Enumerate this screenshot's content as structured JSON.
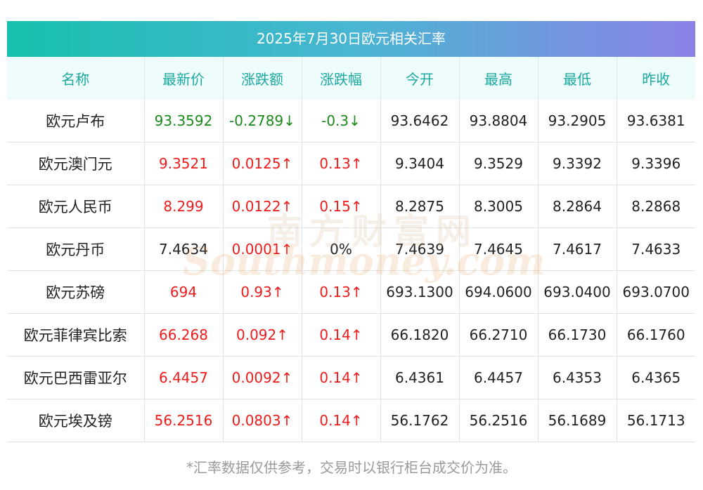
{
  "title": "2025年7月30日欧元相关汇率",
  "columns": [
    "名称",
    "最新价",
    "涨跌额",
    "涨跌幅",
    "今开",
    "最高",
    "最低",
    "昨收"
  ],
  "colors": {
    "up": "#ee1c1c",
    "down": "#1b8a1b",
    "header_text": "#1ba9a0",
    "gradient_start": "#16c0ae",
    "gradient_end": "#8b82e6"
  },
  "rows": [
    {
      "name": "欧元卢布",
      "latest": "93.3592",
      "change": "-0.2789↓",
      "change_pct": "-0.3↓",
      "open": "93.6462",
      "high": "93.8804",
      "low": "93.2905",
      "prev_close": "93.6381",
      "trend": "down"
    },
    {
      "name": "欧元澳门元",
      "latest": "9.3521",
      "change": "0.0125↑",
      "change_pct": "0.13↑",
      "open": "9.3404",
      "high": "9.3529",
      "low": "9.3392",
      "prev_close": "9.3396",
      "trend": "up"
    },
    {
      "name": "欧元人民币",
      "latest": "8.299",
      "change": "0.0122↑",
      "change_pct": "0.15↑",
      "open": "8.2875",
      "high": "8.3005",
      "low": "8.2864",
      "prev_close": "8.2868",
      "trend": "up"
    },
    {
      "name": "欧元丹币",
      "latest": "7.4634",
      "change": "0.0001↑",
      "change_pct": "0%",
      "open": "7.4639",
      "high": "7.4645",
      "low": "7.4617",
      "prev_close": "7.4633",
      "trend": "flat"
    },
    {
      "name": "欧元苏磅",
      "latest": "694",
      "change": "0.93↑",
      "change_pct": "0.13↑",
      "open": "693.1300",
      "high": "694.0600",
      "low": "693.0400",
      "prev_close": "693.0700",
      "trend": "up"
    },
    {
      "name": "欧元菲律宾比索",
      "latest": "66.268",
      "change": "0.092↑",
      "change_pct": "0.14↑",
      "open": "66.1820",
      "high": "66.2710",
      "low": "66.1730",
      "prev_close": "66.1760",
      "trend": "up"
    },
    {
      "name": "欧元巴西雷亚尔",
      "latest": "6.4457",
      "change": "0.0092↑",
      "change_pct": "0.14↑",
      "open": "6.4361",
      "high": "6.4457",
      "low": "6.4353",
      "prev_close": "6.4365",
      "trend": "up"
    },
    {
      "name": "欧元埃及镑",
      "latest": "56.2516",
      "change": "0.0803↑",
      "change_pct": "0.14↑",
      "open": "56.1762",
      "high": "56.2516",
      "low": "56.1689",
      "prev_close": "56.1713",
      "trend": "up"
    }
  ],
  "watermark": {
    "cn": "南方财富网",
    "en": "Southmoney.com"
  },
  "note": "*汇率数据仅供参考，交易时以银行柜台成交价为准。"
}
